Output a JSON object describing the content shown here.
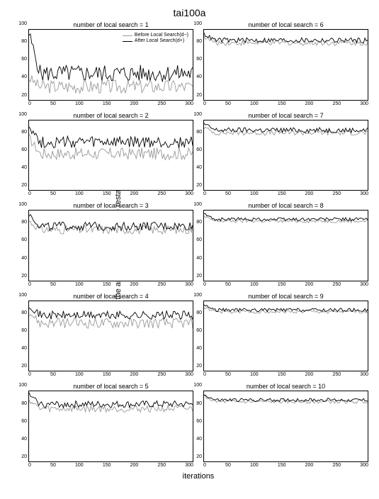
{
  "title": "tai100a",
  "xlabel": "iterations",
  "ylabel": "distance between the ants' solutions and the restart–best solution",
  "legend": {
    "before": "Before Local Search(d−)",
    "after": "After Local Search(d+)"
  },
  "colors": {
    "before": "#999999",
    "after": "#000000",
    "axis": "#000000",
    "background": "#ffffff"
  },
  "axis": {
    "xlim": [
      0,
      300
    ],
    "ylim": [
      20,
      100
    ],
    "xticks": [
      0,
      50,
      100,
      150,
      200,
      250,
      300
    ],
    "yticks": [
      20,
      40,
      60,
      80,
      100
    ]
  },
  "line_width": 0.9,
  "panels": [
    {
      "title": "number of local search = 1",
      "before_mean": 35,
      "before_jitter": 8,
      "before_start": 45,
      "after_mean": 50,
      "after_jitter": 10,
      "after_start": 95,
      "show_legend": true
    },
    {
      "title": "number of local search = 6",
      "before_mean": 85,
      "before_jitter": 3,
      "before_start": 92,
      "after_mean": 88,
      "after_jitter": 3,
      "after_start": 95,
      "show_legend": false
    },
    {
      "title": "number of local search = 2",
      "before_mean": 62,
      "before_jitter": 7,
      "before_start": 80,
      "after_mean": 75,
      "after_jitter": 7,
      "after_start": 95,
      "show_legend": false
    },
    {
      "title": "number of local search = 7",
      "before_mean": 86,
      "before_jitter": 3,
      "before_start": 92,
      "after_mean": 89,
      "after_jitter": 3,
      "after_start": 96,
      "show_legend": false
    },
    {
      "title": "number of local search = 3",
      "before_mean": 78,
      "before_jitter": 5,
      "before_start": 88,
      "after_mean": 82,
      "after_jitter": 5,
      "after_start": 96,
      "show_legend": false
    },
    {
      "title": "number of local search = 8",
      "before_mean": 88,
      "before_jitter": 2,
      "before_start": 93,
      "after_mean": 90,
      "after_jitter": 2,
      "after_start": 96,
      "show_legend": false
    },
    {
      "title": "number of local search = 4",
      "before_mean": 75,
      "before_jitter": 6,
      "before_start": 88,
      "after_mean": 84,
      "after_jitter": 5,
      "after_start": 96,
      "show_legend": false
    },
    {
      "title": "number of local search = 9",
      "before_mean": 88,
      "before_jitter": 2,
      "before_start": 93,
      "after_mean": 90,
      "after_jitter": 2,
      "after_start": 96,
      "show_legend": false
    },
    {
      "title": "number of local search = 5",
      "before_mean": 80,
      "before_jitter": 4,
      "before_start": 90,
      "after_mean": 85,
      "after_jitter": 4,
      "after_start": 96,
      "show_legend": false
    },
    {
      "title": "number of local search = 10",
      "before_mean": 88,
      "before_jitter": 2,
      "before_start": 94,
      "after_mean": 90,
      "after_jitter": 2,
      "after_start": 96,
      "show_legend": false
    }
  ]
}
